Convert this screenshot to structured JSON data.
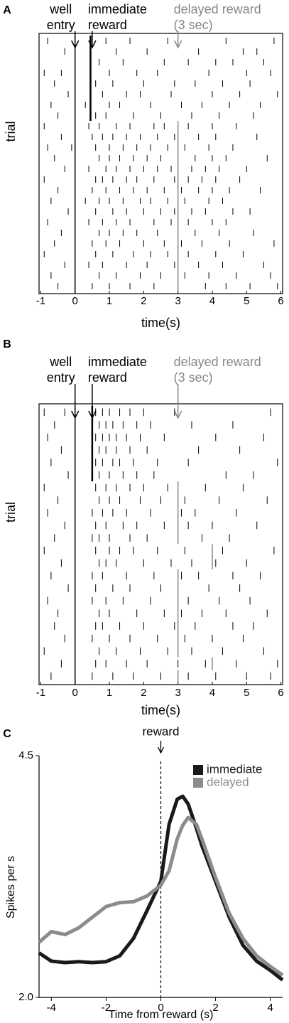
{
  "chart_data": [
    {
      "type": "raster",
      "panel": "A",
      "ylabel": "trial",
      "xlabel": "time(s)",
      "xlim": [
        -1.05,
        6.05
      ],
      "xticks": [
        -1,
        0,
        1,
        2,
        3,
        4,
        5,
        6
      ],
      "events": [
        {
          "x": 0,
          "lines": [
            "well",
            "entry"
          ],
          "color": "#000000",
          "full_line": true
        },
        {
          "x": 0.5,
          "lines": [
            "immediate",
            "reward"
          ],
          "color": "#000000"
        },
        {
          "x": 3,
          "lines": [
            "delayed reward",
            "(3 sec)"
          ],
          "color": "#888888"
        }
      ],
      "trials": [
        {
          "reward": 0.45,
          "spikes": [
            -0.8,
            0.9,
            1.6,
            2.7,
            4.4,
            5.8
          ]
        },
        {
          "reward": 0.45,
          "spikes": [
            -0.3,
            1.2,
            2.1,
            3.6,
            4.9,
            5.3
          ]
        },
        {
          "reward": 0.45,
          "spikes": [
            0.7,
            1.4,
            2.6,
            3.3,
            4.1,
            4.6,
            5.5
          ]
        },
        {
          "reward": 0.45,
          "spikes": [
            -0.9,
            -0.4,
            1.0,
            1.8,
            2.4,
            3.9,
            5.0,
            5.7
          ]
        },
        {
          "reward": 0.45,
          "spikes": [
            -0.6,
            0.6,
            1.1,
            2.0,
            2.9,
            3.5,
            4.3,
            5.1
          ]
        },
        {
          "reward": 0.45,
          "spikes": [
            -0.2,
            0.8,
            1.5,
            1.9,
            2.8,
            4.0,
            4.8,
            5.9
          ]
        },
        {
          "reward": 0.45,
          "spikes": [
            -0.7,
            0.3,
            1.0,
            1.3,
            2.2,
            3.1,
            3.7,
            4.5,
            5.4
          ]
        },
        {
          "reward": 0.45,
          "spikes": [
            -0.5,
            0.6,
            0.9,
            1.7,
            2.5,
            3.4,
            4.2,
            5.2
          ]
        },
        {
          "reward": 3,
          "spikes": [
            -0.9,
            0.4,
            0.7,
            1.2,
            1.6,
            2.3,
            2.6,
            3.3,
            4.0,
            4.7
          ]
        },
        {
          "reward": 3,
          "spikes": [
            -0.4,
            0.5,
            0.8,
            1.1,
            1.5,
            1.9,
            2.4,
            2.9,
            3.6,
            4.1,
            5.3
          ]
        },
        {
          "reward": 3,
          "spikes": [
            -0.8,
            -0.1,
            0.6,
            1.0,
            1.4,
            1.8,
            2.2,
            2.7,
            3.2,
            3.9,
            4.6
          ]
        },
        {
          "reward": 3,
          "spikes": [
            -0.6,
            0.7,
            1.0,
            1.3,
            1.7,
            2.1,
            2.5,
            3.0,
            3.5,
            4.0,
            4.4,
            5.6
          ]
        },
        {
          "reward": 3,
          "spikes": [
            -0.3,
            0.4,
            0.9,
            1.2,
            1.6,
            2.0,
            2.4,
            2.8,
            3.4,
            3.8,
            4.2,
            5.0
          ]
        },
        {
          "reward": 3,
          "spikes": [
            -0.9,
            0.6,
            0.8,
            1.1,
            1.5,
            1.8,
            2.3,
            2.9,
            3.3,
            3.7,
            4.1,
            4.8
          ]
        },
        {
          "reward": 3,
          "spikes": [
            -0.5,
            0.5,
            0.9,
            1.3,
            1.7,
            2.1,
            2.6,
            3.1,
            3.6,
            4.0,
            4.5,
            5.4
          ]
        },
        {
          "reward": 3,
          "spikes": [
            -0.7,
            0.3,
            0.7,
            1.0,
            1.4,
            1.9,
            2.2,
            2.7,
            3.2,
            3.9,
            4.3
          ]
        },
        {
          "reward": 3,
          "spikes": [
            -0.2,
            0.6,
            1.1,
            1.5,
            2.0,
            2.5,
            2.9,
            3.4,
            3.8,
            4.6,
            5.1
          ]
        },
        {
          "reward": 3,
          "spikes": [
            -0.8,
            0.4,
            0.8,
            1.2,
            1.6,
            2.3,
            2.8,
            3.3,
            4.0,
            4.4
          ]
        },
        {
          "reward": 3,
          "spikes": [
            -0.4,
            0.7,
            1.0,
            1.4,
            1.8,
            2.4,
            3.0,
            3.5,
            4.2,
            5.2
          ]
        },
        {
          "reward": 3,
          "spikes": [
            -0.6,
            0.5,
            0.9,
            1.3,
            2.0,
            2.6,
            3.1,
            3.7,
            4.5,
            5.8
          ]
        },
        {
          "reward": 3,
          "spikes": [
            -0.9,
            0.6,
            1.1,
            1.7,
            2.2,
            2.7,
            3.3,
            4.1,
            4.9
          ]
        },
        {
          "reward": 3,
          "spikes": [
            -0.3,
            0.4,
            0.8,
            1.5,
            2.1,
            2.9,
            3.6,
            4.3,
            5.5
          ]
        },
        {
          "reward": 3,
          "spikes": [
            -0.7,
            0.7,
            1.2,
            1.9,
            2.5,
            3.2,
            3.9,
            4.7,
            5.7
          ]
        },
        {
          "reward": 3,
          "spikes": [
            -0.5,
            0.5,
            1.0,
            1.6,
            2.3,
            3.0,
            3.8,
            4.4,
            5.1,
            5.9
          ]
        }
      ]
    },
    {
      "type": "raster",
      "panel": "B",
      "ylabel": "trial",
      "xlabel": "time(s)",
      "xlim": [
        -1.05,
        6.05
      ],
      "xticks": [
        -1,
        0,
        1,
        2,
        3,
        4,
        5,
        6
      ],
      "events": [
        {
          "x": 0,
          "lines": [
            "well",
            "entry"
          ],
          "color": "#000000",
          "full_line": true
        },
        {
          "x": 0.5,
          "lines": [
            "immediate",
            "reward"
          ],
          "color": "#000000"
        },
        {
          "x": 3,
          "lines": [
            "delayed reward",
            "(3 sec)"
          ],
          "color": "#888888"
        }
      ],
      "trials": [
        {
          "reward": 0.5,
          "spikes": [
            -0.9,
            -0.3,
            0.6,
            0.8,
            1.0,
            1.3,
            1.6,
            2.0,
            2.9,
            5.7
          ]
        },
        {
          "reward": 0.5,
          "spikes": [
            -0.6,
            0.5,
            0.7,
            0.9,
            1.1,
            1.4,
            1.8,
            2.2,
            3.4,
            4.6
          ]
        },
        {
          "reward": 0.5,
          "spikes": [
            -0.8,
            0.6,
            0.8,
            1.0,
            1.2,
            1.5,
            1.9,
            2.6,
            4.1,
            5.5
          ]
        },
        {
          "reward": 0.5,
          "spikes": [
            -0.4,
            0.5,
            0.7,
            0.9,
            1.2,
            1.6,
            2.1,
            3.6,
            4.8
          ]
        },
        {
          "reward": 0.5,
          "spikes": [
            -0.7,
            0.6,
            0.8,
            1.1,
            1.3,
            1.7,
            2.4,
            3.3,
            5.9
          ]
        },
        {
          "reward": 0.5,
          "spikes": [
            -0.2,
            0.5,
            0.7,
            1.0,
            1.4,
            1.8,
            2.3,
            4.4,
            5.2
          ]
        },
        {
          "reward": 3,
          "spikes": [
            -0.9,
            0.6,
            0.9,
            1.2,
            1.6,
            2.0,
            2.7,
            3.8,
            4.9
          ]
        },
        {
          "reward": 3,
          "spikes": [
            -0.5,
            0.7,
            1.0,
            1.3,
            1.9,
            2.5,
            3.2,
            4.2,
            5.6
          ]
        },
        {
          "reward": 3,
          "spikes": [
            -0.8,
            0.5,
            0.8,
            1.1,
            1.5,
            2.2,
            3.1,
            3.5,
            4.7
          ]
        },
        {
          "reward": 3,
          "spikes": [
            -0.3,
            0.6,
            0.9,
            1.4,
            1.8,
            2.6,
            3.3,
            4.0,
            5.3
          ]
        },
        {
          "reward": 3,
          "spikes": [
            -0.6,
            0.5,
            0.7,
            1.0,
            1.6,
            2.1,
            3.0,
            3.7,
            4.5
          ]
        },
        {
          "reward": 4,
          "spikes": [
            -0.9,
            0.6,
            1.0,
            1.3,
            1.7,
            2.4,
            3.2,
            4.3,
            5.8
          ]
        },
        {
          "reward": 4,
          "spikes": [
            -0.4,
            0.7,
            0.9,
            1.2,
            2.0,
            2.8,
            3.4,
            4.1,
            5.0
          ]
        },
        {
          "reward": 3,
          "spikes": [
            -0.7,
            0.5,
            0.8,
            1.5,
            2.3,
            3.1,
            3.6,
            4.6,
            5.4
          ]
        },
        {
          "reward": 3,
          "spikes": [
            -0.2,
            0.6,
            1.1,
            1.6,
            2.5,
            3.0,
            3.9,
            4.8
          ]
        },
        {
          "reward": 3,
          "spikes": [
            -0.8,
            0.5,
            0.9,
            1.4,
            2.2,
            3.3,
            4.2,
            5.1
          ]
        },
        {
          "reward": 3,
          "spikes": [
            -0.5,
            0.7,
            1.0,
            1.8,
            2.6,
            3.1,
            3.7,
            4.4,
            5.6
          ]
        },
        {
          "reward": 3,
          "spikes": [
            -0.6,
            0.6,
            0.8,
            1.3,
            2.0,
            2.9,
            3.5,
            4.6,
            5.2
          ]
        },
        {
          "reward": 3,
          "spikes": [
            -0.3,
            0.5,
            1.0,
            1.6,
            2.4,
            3.2,
            4.0,
            4.9
          ]
        },
        {
          "reward": 3,
          "spikes": [
            -0.9,
            0.7,
            1.2,
            1.9,
            2.7,
            3.4,
            4.3,
            5.5
          ]
        },
        {
          "reward": 4,
          "spikes": [
            -0.4,
            0.6,
            0.9,
            1.5,
            2.1,
            3.0,
            3.8,
            4.7,
            5.9
          ]
        },
        {
          "reward": 3,
          "spikes": [
            -0.7,
            0.5,
            1.1,
            1.7,
            2.5,
            3.3,
            4.1,
            5.0,
            5.7
          ]
        }
      ]
    },
    {
      "type": "line",
      "panel": "C",
      "xlabel": "Time from reward (s)",
      "ylabel": "Spikes per s",
      "xlim": [
        -4.45,
        4.45
      ],
      "ylim": [
        2.0,
        4.5
      ],
      "xticks": [
        -4,
        -2,
        0,
        2,
        4
      ],
      "yticks": [
        {
          "value": 2.0,
          "label": "2.0"
        },
        {
          "value": 4.5,
          "label": "4.5"
        }
      ],
      "annotation": {
        "x": 0,
        "text": "reward"
      },
      "x": [
        -4.45,
        -4,
        -3.5,
        -3,
        -2.5,
        -2,
        -1.5,
        -1,
        -0.5,
        0,
        0.3,
        0.6,
        0.8,
        1,
        1.3,
        1.5,
        2,
        2.5,
        3,
        3.5,
        4,
        4.45
      ],
      "series": [
        {
          "name": "immediate",
          "color": "#1a1a1a",
          "values": [
            2.46,
            2.375,
            2.36,
            2.37,
            2.36,
            2.37,
            2.43,
            2.61,
            2.9,
            3.2,
            3.79,
            4.05,
            4.08,
            4.0,
            3.75,
            3.57,
            3.2,
            2.83,
            2.54,
            2.375,
            2.28,
            2.18
          ]
        },
        {
          "name": "delayed",
          "color": "#8c8c8c",
          "values": [
            2.57,
            2.68,
            2.65,
            2.72,
            2.83,
            2.94,
            2.98,
            2.99,
            3.05,
            3.16,
            3.31,
            3.64,
            3.78,
            3.86,
            3.79,
            3.64,
            3.24,
            2.87,
            2.61,
            2.43,
            2.32,
            2.23
          ]
        }
      ]
    }
  ]
}
